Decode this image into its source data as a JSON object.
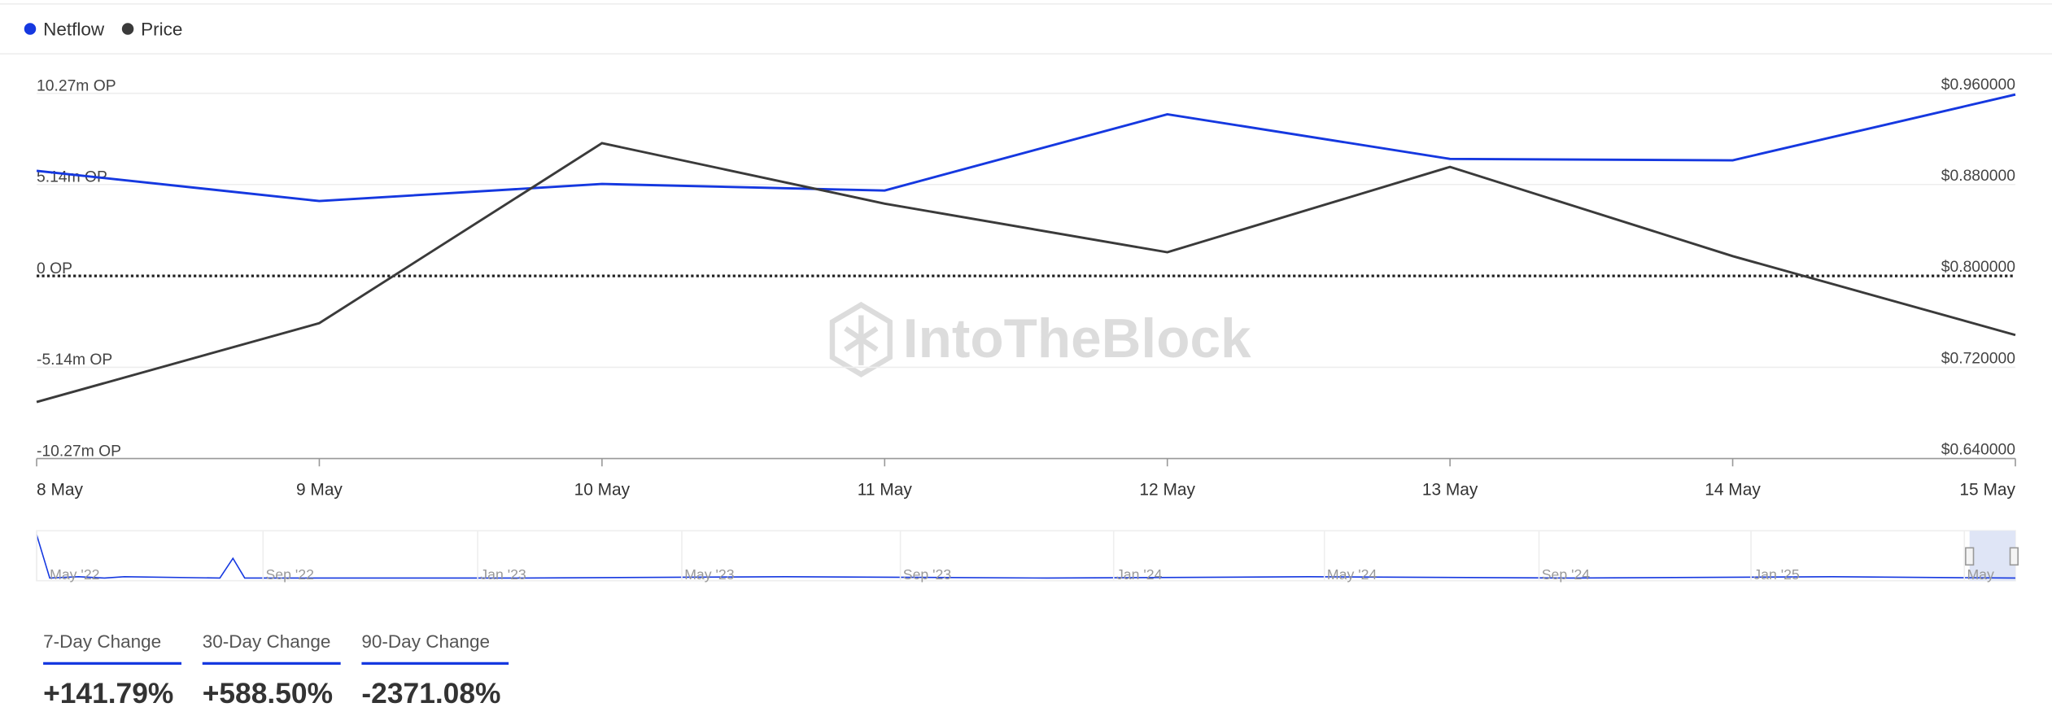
{
  "chart_data": {
    "type": "line",
    "categories": [
      "8 May",
      "9 May",
      "10 May",
      "11 May",
      "12 May",
      "13 May",
      "14 May",
      "15 May"
    ],
    "series": [
      {
        "name": "Netflow",
        "color": "#1538e0",
        "values": [
          5910000,
          4210000,
          5170000,
          4800000,
          9090000,
          6580000,
          6500000,
          10200000
        ]
      },
      {
        "name": "Price",
        "color": "#3a3a3a",
        "axis": "y2",
        "values": [
          0.6895,
          0.7586,
          0.9163,
          0.8633,
          0.8207,
          0.8955,
          0.8173,
          0.7482
        ]
      }
    ],
    "ylim": [
      -10270000,
      10270000
    ],
    "yticks": [
      {
        "value": -10270000,
        "label": "-10.27m OP"
      },
      {
        "value": -5140000,
        "label": "-5.14m OP"
      },
      {
        "value": 0,
        "label": "0 OP"
      },
      {
        "value": 5140000,
        "label": "5.14m OP"
      },
      {
        "value": 10270000,
        "label": "10.27m OP"
      }
    ],
    "y2lim": [
      0.64,
      0.96
    ],
    "y2ticks": [
      {
        "value": 0.64,
        "label": "$0.640000"
      },
      {
        "value": 0.72,
        "label": "$0.720000"
      },
      {
        "value": 0.8,
        "label": "$0.800000"
      },
      {
        "value": 0.88,
        "label": "$0.880000"
      },
      {
        "value": 0.96,
        "label": "$0.960000"
      }
    ],
    "grid": true,
    "legend": "top-left"
  },
  "watermark": "IntoTheBlock",
  "navigator": {
    "labels": [
      "May '22",
      "Sep '22",
      "Jan '23",
      "May '23",
      "Sep '23",
      "Jan '24",
      "May '24",
      "Sep '24",
      "Jan '25",
      "May"
    ]
  },
  "changes": [
    {
      "label": "7-Day Change",
      "value": "+141.79%"
    },
    {
      "label": "30-Day Change",
      "value": "+588.50%"
    },
    {
      "label": "90-Day Change",
      "value": "-2371.08%"
    }
  ]
}
